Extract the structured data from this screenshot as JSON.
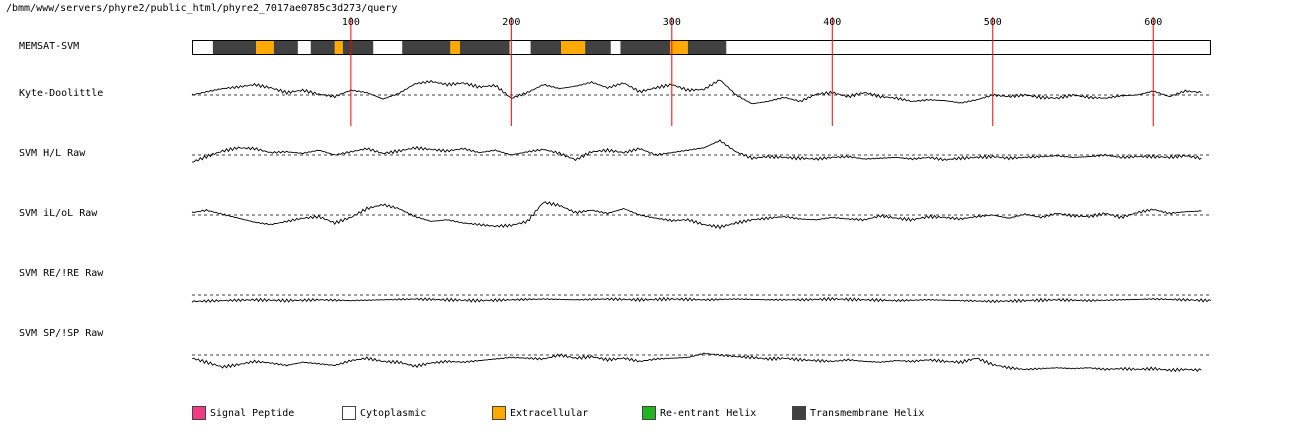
{
  "page": {
    "path": "/bmm/www/servers/phyre2/public_html/phyre2_7017ae0785c3d273/query"
  },
  "chart_data": {
    "type": "line",
    "x_axis": {
      "min": 1,
      "max": 636,
      "ticks": [
        100,
        200,
        300,
        400,
        500,
        600
      ]
    },
    "colors": {
      "signal_peptide": "#f03c82",
      "cytoplasmic": "#ffffff",
      "extracellular": "#ffaa00",
      "reentrant": "#22b41e",
      "transmembrane": "#414141",
      "marker": "#ff0000"
    },
    "memsat": {
      "label": "MEMSAT-SVM",
      "segments": [
        {
          "start": 1,
          "end": 14,
          "type": "cytoplasmic"
        },
        {
          "start": 14,
          "end": 41,
          "type": "transmembrane"
        },
        {
          "start": 41,
          "end": 52,
          "type": "extracellular"
        },
        {
          "start": 52,
          "end": 67,
          "type": "transmembrane"
        },
        {
          "start": 67,
          "end": 75,
          "type": "cytoplasmic"
        },
        {
          "start": 75,
          "end": 90,
          "type": "transmembrane"
        },
        {
          "start": 90,
          "end": 95,
          "type": "extracellular"
        },
        {
          "start": 95,
          "end": 114,
          "type": "transmembrane"
        },
        {
          "start": 114,
          "end": 132,
          "type": "cytoplasmic"
        },
        {
          "start": 132,
          "end": 162,
          "type": "transmembrane"
        },
        {
          "start": 162,
          "end": 168,
          "type": "extracellular"
        },
        {
          "start": 168,
          "end": 199,
          "type": "transmembrane"
        },
        {
          "start": 199,
          "end": 212,
          "type": "cytoplasmic"
        },
        {
          "start": 212,
          "end": 231,
          "type": "transmembrane"
        },
        {
          "start": 231,
          "end": 246,
          "type": "extracellular"
        },
        {
          "start": 246,
          "end": 262,
          "type": "transmembrane"
        },
        {
          "start": 262,
          "end": 268,
          "type": "cytoplasmic"
        },
        {
          "start": 268,
          "end": 299,
          "type": "transmembrane"
        },
        {
          "start": 299,
          "end": 310,
          "type": "extracellular"
        },
        {
          "start": 310,
          "end": 334,
          "type": "transmembrane"
        },
        {
          "start": 334,
          "end": 636,
          "type": "cytoplasmic"
        }
      ]
    },
    "tracks": [
      {
        "name": "Kyte-Doolittle",
        "baseline": 0,
        "range": [
          -2.5,
          2.5
        ],
        "x": [
          1,
          10,
          20,
          30,
          40,
          50,
          60,
          70,
          80,
          90,
          100,
          110,
          120,
          130,
          140,
          150,
          160,
          170,
          180,
          190,
          200,
          210,
          220,
          230,
          240,
          250,
          260,
          270,
          280,
          290,
          300,
          310,
          320,
          330,
          340,
          350,
          360,
          370,
          380,
          390,
          400,
          410,
          420,
          430,
          440,
          450,
          460,
          470,
          480,
          490,
          500,
          510,
          520,
          530,
          540,
          550,
          560,
          570,
          580,
          590,
          600,
          610,
          620,
          630
        ],
        "y": [
          0.0,
          0.4,
          0.8,
          1.0,
          1.3,
          0.9,
          0.3,
          0.6,
          0.1,
          -0.2,
          0.6,
          0.3,
          -0.5,
          0.2,
          1.4,
          1.7,
          1.3,
          1.5,
          1.0,
          1.2,
          -0.4,
          0.3,
          1.3,
          0.8,
          1.1,
          1.6,
          0.9,
          1.5,
          0.4,
          0.9,
          1.3,
          0.6,
          0.7,
          1.9,
          0.0,
          -1.1,
          -0.8,
          -0.3,
          -0.8,
          0.1,
          0.3,
          -0.2,
          0.3,
          -0.2,
          -0.4,
          -0.8,
          -0.6,
          -0.7,
          -1.0,
          -0.6,
          0.0,
          -0.2,
          0.0,
          -0.3,
          -0.4,
          0.0,
          -0.3,
          -0.4,
          -0.1,
          0.0,
          0.5,
          -0.2,
          0.5,
          0.3
        ]
      },
      {
        "name": "SVM H/L Raw",
        "baseline": 0,
        "range": [
          -2.5,
          2.5
        ],
        "x": [
          1,
          10,
          20,
          30,
          40,
          50,
          60,
          70,
          80,
          90,
          100,
          110,
          120,
          130,
          140,
          150,
          160,
          170,
          180,
          190,
          200,
          210,
          220,
          230,
          240,
          250,
          260,
          270,
          280,
          290,
          300,
          310,
          320,
          330,
          340,
          350,
          360,
          370,
          380,
          390,
          400,
          410,
          420,
          430,
          440,
          450,
          460,
          470,
          480,
          490,
          500,
          510,
          520,
          530,
          540,
          550,
          560,
          570,
          580,
          590,
          600,
          610,
          620,
          630
        ],
        "y": [
          -0.9,
          -0.2,
          0.5,
          0.9,
          0.8,
          0.3,
          0.4,
          0.2,
          0.6,
          0.0,
          0.4,
          0.8,
          0.2,
          0.5,
          0.9,
          0.7,
          0.5,
          0.8,
          0.3,
          0.6,
          0.0,
          0.4,
          0.7,
          0.2,
          -0.6,
          0.4,
          0.6,
          0.3,
          0.8,
          0.0,
          0.3,
          0.6,
          0.9,
          1.8,
          0.4,
          -0.4,
          -0.2,
          -0.3,
          -0.4,
          -0.5,
          -0.3,
          -0.2,
          -0.5,
          -0.4,
          -0.3,
          -0.5,
          -0.3,
          -0.6,
          -0.4,
          -0.3,
          -0.2,
          -0.4,
          -0.3,
          -0.2,
          -0.1,
          -0.3,
          -0.2,
          0.0,
          -0.3,
          -0.2,
          -0.2,
          -0.3,
          -0.1,
          -0.4
        ]
      },
      {
        "name": "SVM iL/oL Raw",
        "baseline": 0,
        "range": [
          -2.5,
          2.5
        ],
        "x": [
          1,
          10,
          20,
          30,
          40,
          50,
          60,
          70,
          80,
          90,
          100,
          110,
          120,
          130,
          140,
          150,
          160,
          170,
          180,
          190,
          200,
          210,
          220,
          230,
          240,
          250,
          260,
          270,
          280,
          290,
          300,
          310,
          320,
          330,
          340,
          350,
          360,
          370,
          380,
          390,
          400,
          410,
          420,
          430,
          440,
          450,
          460,
          470,
          480,
          490,
          500,
          510,
          520,
          530,
          540,
          550,
          560,
          570,
          580,
          590,
          600,
          610,
          620,
          630
        ],
        "y": [
          0.3,
          0.6,
          0.1,
          -0.4,
          -0.9,
          -1.2,
          -0.8,
          -0.4,
          -0.2,
          -1.0,
          -0.3,
          0.8,
          1.3,
          0.8,
          -0.2,
          -0.8,
          -0.6,
          -1.0,
          -1.2,
          -1.4,
          -1.3,
          -0.8,
          1.6,
          1.2,
          0.3,
          0.6,
          0.2,
          0.8,
          0.0,
          -0.4,
          -0.7,
          -0.6,
          -1.2,
          -1.5,
          -1.0,
          -0.6,
          -0.4,
          -0.2,
          -0.5,
          -0.6,
          -0.3,
          -0.5,
          -0.6,
          -0.1,
          -0.4,
          -0.6,
          -0.2,
          -0.3,
          -0.5,
          -0.2,
          0.0,
          -0.4,
          0.1,
          -0.3,
          0.2,
          -0.1,
          -0.2,
          0.2,
          -0.3,
          0.3,
          0.7,
          0.2,
          0.4,
          0.5
        ]
      },
      {
        "name": "SVM RE/!RE Raw",
        "baseline": 0,
        "range": [
          -2.5,
          2.5
        ],
        "x": [
          1,
          20,
          40,
          60,
          80,
          100,
          120,
          140,
          160,
          180,
          200,
          220,
          240,
          260,
          280,
          300,
          320,
          340,
          360,
          380,
          400,
          420,
          440,
          460,
          480,
          500,
          520,
          540,
          560,
          580,
          600,
          620,
          636
        ],
        "y": [
          -0.8,
          -0.7,
          -0.6,
          -0.7,
          -0.6,
          -0.7,
          -0.6,
          -0.5,
          -0.6,
          -0.7,
          -0.6,
          -0.5,
          -0.6,
          -0.5,
          -0.6,
          -0.5,
          -0.6,
          -0.5,
          -0.6,
          -0.6,
          -0.5,
          -0.6,
          -0.7,
          -0.6,
          -0.7,
          -0.8,
          -0.7,
          -0.6,
          -0.7,
          -0.6,
          -0.5,
          -0.6,
          -0.7
        ]
      },
      {
        "name": "SVM SP/!SP Raw",
        "baseline": 0,
        "range": [
          -2.5,
          2.5
        ],
        "x": [
          1,
          10,
          20,
          30,
          40,
          50,
          60,
          70,
          80,
          90,
          100,
          110,
          120,
          130,
          140,
          150,
          160,
          170,
          180,
          190,
          200,
          210,
          220,
          230,
          240,
          250,
          260,
          270,
          280,
          290,
          300,
          310,
          320,
          330,
          340,
          350,
          360,
          370,
          380,
          390,
          400,
          410,
          420,
          430,
          440,
          450,
          460,
          470,
          480,
          490,
          500,
          510,
          520,
          530,
          540,
          550,
          560,
          570,
          580,
          590,
          600,
          610,
          620,
          630
        ],
        "y": [
          -0.4,
          -0.9,
          -1.5,
          -1.2,
          -0.8,
          -1.0,
          -1.3,
          -0.9,
          -1.1,
          -1.3,
          -0.7,
          -0.4,
          -0.8,
          -0.9,
          -1.4,
          -1.0,
          -0.8,
          -0.9,
          -0.7,
          -0.5,
          -0.3,
          -0.4,
          -0.5,
          0.0,
          -0.4,
          -0.2,
          -0.6,
          -0.4,
          -0.8,
          -0.5,
          -0.4,
          -0.3,
          0.2,
          0.0,
          -0.2,
          -0.3,
          -0.5,
          -0.4,
          -0.6,
          -0.7,
          -0.8,
          -0.6,
          -0.8,
          -0.9,
          -0.7,
          -0.8,
          -0.6,
          -0.8,
          -0.9,
          -0.4,
          -1.2,
          -1.6,
          -1.8,
          -1.7,
          -1.6,
          -1.7,
          -1.6,
          -1.8,
          -1.7,
          -1.8,
          -1.7,
          -1.9,
          -1.8,
          -1.9
        ]
      }
    ],
    "legend": [
      {
        "label": "Signal Peptide",
        "type": "signal_peptide"
      },
      {
        "label": "Cytoplasmic",
        "type": "cytoplasmic"
      },
      {
        "label": "Extracellular",
        "type": "extracellular"
      },
      {
        "label": "Re-entrant Helix",
        "type": "reentrant"
      },
      {
        "label": "Transmembrane Helix",
        "type": "transmembrane"
      }
    ]
  }
}
